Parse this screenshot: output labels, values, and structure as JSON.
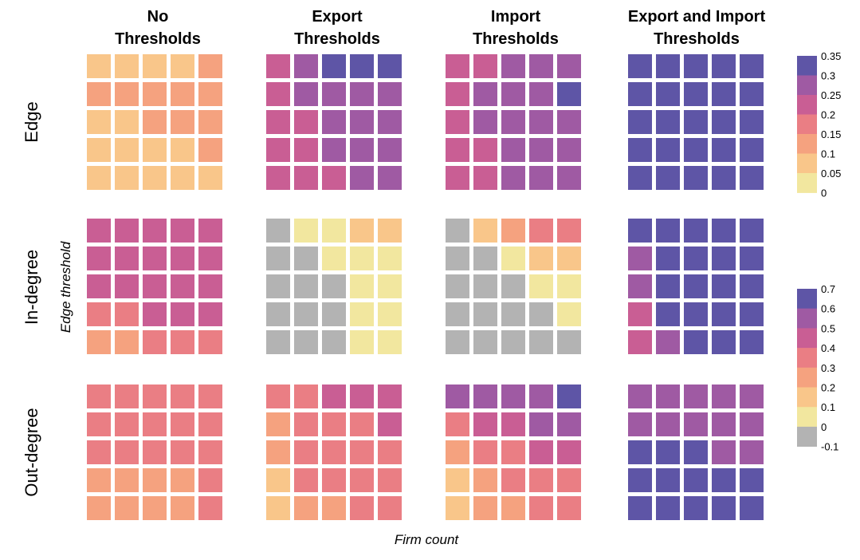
{
  "chart_data": {
    "type": "heatmap",
    "column_titles": [
      [
        "No",
        "Thresholds"
      ],
      [
        "Export",
        "Thresholds"
      ],
      [
        "Import",
        "Thresholds"
      ],
      [
        "Export and Import",
        "Thresholds"
      ]
    ],
    "row_titles": [
      "Edge",
      "In-degree",
      "Out-degree"
    ],
    "xlabel": "Firm count",
    "ylabel": "Edge threshold",
    "legends": [
      {
        "name": "edge-legend",
        "applies_to_rows": [
          0
        ],
        "ticks": [
          "0.35",
          "0.3",
          "0.25",
          "0.2",
          "0.15",
          "0.1",
          "0.05",
          "0"
        ],
        "bins": [
          {
            "label": "0.35",
            "color": "#5e55a6"
          },
          {
            "label": "0.3",
            "color": "#9f5aa3"
          },
          {
            "label": "0.25",
            "color": "#c95e94"
          },
          {
            "label": "0.2",
            "color": "#ea7e84"
          },
          {
            "label": "0.15",
            "color": "#f5a27f"
          },
          {
            "label": "0.1",
            "color": "#f9c68a"
          },
          {
            "label": "0.05",
            "color": "#f2e79f"
          }
        ]
      },
      {
        "name": "degree-legend",
        "applies_to_rows": [
          1,
          2
        ],
        "ticks": [
          "0.7",
          "0.6",
          "0.5",
          "0.4",
          "0.3",
          "0.2",
          "0.1",
          "0",
          "-0.1"
        ],
        "bins": [
          {
            "label": "0.7",
            "color": "#5e55a6"
          },
          {
            "label": "0.6",
            "color": "#9f5aa3"
          },
          {
            "label": "0.5",
            "color": "#c95e94"
          },
          {
            "label": "0.4",
            "color": "#ea7e84"
          },
          {
            "label": "0.3",
            "color": "#f5a27f"
          },
          {
            "label": "0.2",
            "color": "#f9c68a"
          },
          {
            "label": "0.1",
            "color": "#f2e79f"
          },
          {
            "label": "0",
            "color": "#b3b3b3"
          }
        ]
      }
    ],
    "colors": {
      "P": "#5e55a6",
      "V": "#9f5aa3",
      "M": "#c95e94",
      "R": "#ea7e84",
      "O": "#f5a27f",
      "L": "#f9c68a",
      "Y": "#f2e79f",
      "G": "#b3b3b3"
    },
    "panels": [
      [
        [
          "LLLLO",
          "OOOOO",
          "LLOOO",
          "LLLLO",
          "LLLLL"
        ],
        [
          "MVPPP",
          "MVVVV",
          "MMVVV",
          "MMVVV",
          "MMMVV"
        ],
        [
          "MMVVV",
          "MVVVP",
          "MVVVV",
          "MMVVV",
          "MMVVV"
        ],
        [
          "PPPPP",
          "PPPPP",
          "PPPPP",
          "PPPPP",
          "PPPPP"
        ]
      ],
      [
        [
          "MMMMM",
          "MMMMM",
          "MMMMM",
          "RRMMM",
          "OORRR"
        ],
        [
          "GYYLL",
          "GGYYY",
          "GGGYY",
          "GGGYY",
          "GGGYY"
        ],
        [
          "GLORR",
          "GGYLL",
          "GGGYY",
          "GGGGY",
          "GGGGG"
        ],
        [
          "PPPPP",
          "VPPPP",
          "VPPPP",
          "MPPPP",
          "MVPPP"
        ]
      ],
      [
        [
          "RRRRR",
          "RRRRR",
          "RRRRR",
          "OOOOR",
          "OOOOR"
        ],
        [
          "RRMMM",
          "ORRRM",
          "ORRRR",
          "LRRRR",
          "LOORR"
        ],
        [
          "VVVVP",
          "RMMVV",
          "ORRMM",
          "LORRR",
          "LOORR"
        ],
        [
          "VVVVV",
          "VVVVV",
          "PPPVV",
          "PPPPP",
          "PPPPP"
        ]
      ]
    ]
  }
}
